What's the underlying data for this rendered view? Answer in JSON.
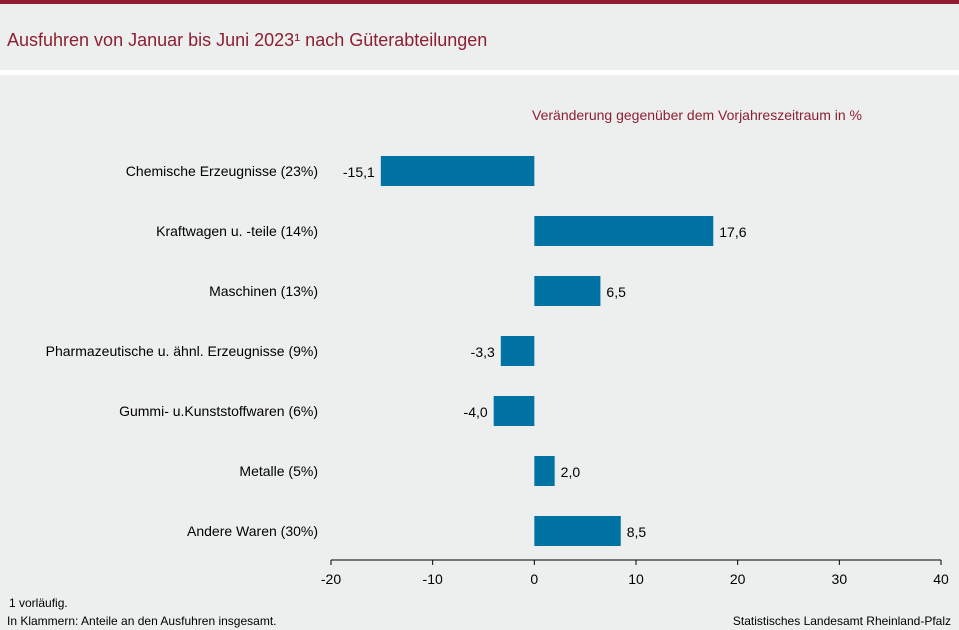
{
  "header": {
    "title": "Ausfuhren von Januar bis Juni 2023¹ nach Güterabteilungen"
  },
  "colors": {
    "accent": "#8e1f33",
    "bar": "#0073a4",
    "background": "#ecefee"
  },
  "chart_data": {
    "type": "bar",
    "orientation": "horizontal",
    "subtitle": "Veränderung  gegenüber  dem  Vorjahreszeitraum  in %",
    "categories": [
      "Chemische Erzeugnisse (23%)",
      "Kraftwagen u. -teile (14%)",
      "Maschinen (13%)",
      "Pharmazeutische u. ähnl. Erzeugnisse (9%)",
      "Gummi-  u.Kunststoffwaren (6%)",
      "Metalle (5%)",
      "Andere Waren (30%)"
    ],
    "values": [
      -15.1,
      17.6,
      6.5,
      -3.3,
      -4.0,
      2.0,
      8.5
    ],
    "value_labels": [
      "-15,1",
      "17,6",
      "6,5",
      "-3,3",
      "-4,0",
      "2,0",
      "8,5"
    ],
    "xlim": [
      -20,
      40
    ],
    "xticks": [
      -20,
      -10,
      0,
      10,
      20,
      30,
      40
    ],
    "xtick_labels": [
      "-20",
      "-10",
      "0",
      "10",
      "20",
      "30",
      "40"
    ],
    "grid": false,
    "legend": "none"
  },
  "footer": {
    "note1": "1 vorläufig.",
    "note2": "In Klammern:  Anteile an den Ausfuhren  insgesamt.",
    "source": "Statistisches Landesamt  Rheinland-Pfalz"
  }
}
